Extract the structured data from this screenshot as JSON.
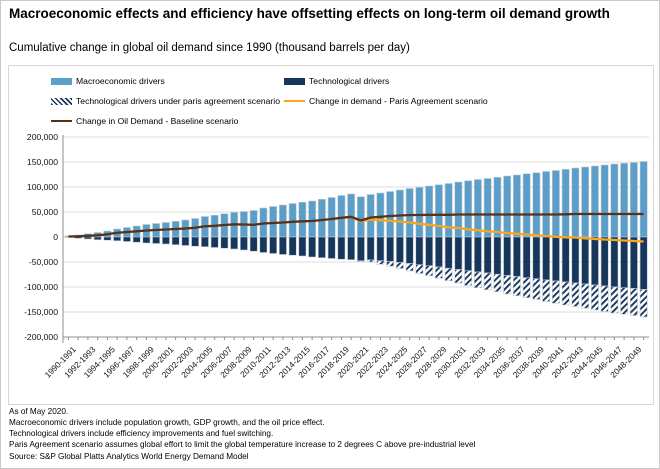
{
  "header": {
    "title": "Macroeconomic effects and efficiency have offsetting effects on long-term oil demand growth",
    "subtitle": "Cumulative change in global oil demand since 1990 (thousand barrels per day)"
  },
  "colors": {
    "macro_blue": "#5b9ec9",
    "tech_navy": "#16365c",
    "baseline_brown": "#583116",
    "paris_orange": "#faa51e",
    "gridline": "#dcdcdc",
    "axis": "#8c8c8c"
  },
  "legend": {
    "items": [
      {
        "label": "Macroeconomic drivers",
        "swatch": "bar",
        "color": "#5b9ec9"
      },
      {
        "label": "Technological drivers",
        "swatch": "bar",
        "color": "#16365c"
      },
      {
        "label": "Technological drivers under paris agreement scenario",
        "swatch": "hatch",
        "color": "#16365c"
      },
      {
        "label": "Change in demand - Paris Agreement scenario",
        "swatch": "line",
        "color": "#faa51e"
      },
      {
        "label": "Change in Oil Demand - Baseline scenario",
        "swatch": "line",
        "color": "#583116"
      }
    ]
  },
  "chart_data": {
    "type": "bar",
    "note": "stacked diverging bars with two overlay line series; unit = thousand barrels per day, cumulative change since 1990",
    "ylim": [
      -200000,
      200000
    ],
    "grid": true,
    "legend_position": "top",
    "y_ticks": [
      200000,
      150000,
      100000,
      50000,
      0,
      -50000,
      -100000,
      -150000,
      -200000
    ],
    "y_tick_labels": [
      "200,000",
      "150,000",
      "100,000",
      "50,000",
      "0",
      "-50,000",
      "-100,000",
      "-150,000",
      "-200,000"
    ],
    "categories": [
      "1990-1991",
      "1992-1993",
      "1994-1995",
      "1996-1997",
      "1998-1999",
      "2000-2001",
      "2002-2003",
      "2004-2005",
      "2006-2007",
      "2008-2009",
      "2010-2011",
      "2012-2013",
      "2014-2015",
      "2016-2017",
      "2018-2019",
      "2020-2021",
      "2022-2023",
      "2024-2025",
      "2026-2027",
      "2028-2029",
      "2030-2031",
      "2032-2033",
      "2034-2035",
      "2036-2037",
      "2038-2039",
      "2040-2041",
      "2042-2043",
      "2044-2045",
      "2046-2047",
      "2048-2049"
    ],
    "years": [
      1990,
      1991,
      1992,
      1993,
      1994,
      1995,
      1996,
      1997,
      1998,
      1999,
      2000,
      2001,
      2002,
      2003,
      2004,
      2005,
      2006,
      2007,
      2008,
      2009,
      2010,
      2011,
      2012,
      2013,
      2014,
      2015,
      2016,
      2017,
      2018,
      2019,
      2020,
      2021,
      2022,
      2023,
      2024,
      2025,
      2026,
      2027,
      2028,
      2029,
      2030,
      2031,
      2032,
      2033,
      2034,
      2035,
      2036,
      2037,
      2038,
      2039,
      2040,
      2041,
      2042,
      2043,
      2044,
      2045,
      2046,
      2047,
      2048,
      2049
    ],
    "series": [
      {
        "name": "Macroeconomic drivers",
        "render": "bar-positive",
        "values": [
          2000,
          4000,
          6500,
          9000,
          12000,
          16000,
          19000,
          22000,
          25000,
          27000,
          29000,
          31500,
          34000,
          37000,
          41000,
          43500,
          46500,
          49500,
          51000,
          53000,
          58000,
          61000,
          64000,
          67000,
          69500,
          72000,
          75500,
          79000,
          83000,
          86000,
          80500,
          85000,
          88000,
          91000,
          94000,
          97000,
          99500,
          102000,
          104500,
          107000,
          110000,
          112500,
          115000,
          117000,
          119500,
          122000,
          124000,
          126500,
          128500,
          131000,
          133000,
          135500,
          138000,
          140000,
          142000,
          144000,
          146000,
          147500,
          149000,
          151000
        ]
      },
      {
        "name": "Technological drivers",
        "render": "bar-negative",
        "values": [
          -1000,
          -2500,
          -4000,
          -5500,
          -6500,
          -7500,
          -9000,
          -10500,
          -12000,
          -13000,
          -14000,
          -15500,
          -17000,
          -18500,
          -19500,
          -21000,
          -22500,
          -24000,
          -26000,
          -28500,
          -31000,
          -33000,
          -35000,
          -36500,
          -38000,
          -40000,
          -41500,
          -43000,
          -44500,
          -45500,
          -47500,
          -46000,
          -47500,
          -49000,
          -51000,
          -53000,
          -55500,
          -57500,
          -60000,
          -62500,
          -65000,
          -67500,
          -70000,
          -72000,
          -74500,
          -77000,
          -79000,
          -81500,
          -83500,
          -86000,
          -88000,
          -90000,
          -92000,
          -94000,
          -96000,
          -98000,
          -100000,
          -101500,
          -103000,
          -105000
        ]
      },
      {
        "name": "Technological drivers under paris agreement scenario",
        "render": "bar-hatched-extension",
        "values": [
          0,
          0,
          0,
          0,
          0,
          0,
          0,
          0,
          0,
          0,
          0,
          0,
          0,
          0,
          0,
          0,
          0,
          0,
          0,
          0,
          0,
          0,
          0,
          0,
          0,
          0,
          0,
          0,
          0,
          0,
          -1500,
          -4000,
          -7000,
          -9500,
          -12000,
          -15000,
          -17500,
          -20000,
          -22500,
          -25000,
          -27000,
          -29500,
          -31500,
          -33500,
          -35000,
          -37000,
          -38500,
          -40000,
          -41500,
          -43000,
          -44500,
          -46000,
          -47000,
          -48500,
          -50000,
          -51000,
          -52000,
          -53000,
          -54000,
          -55000
        ]
      },
      {
        "name": "Change in Oil Demand - Baseline scenario",
        "render": "line",
        "derived": "macro_plus_tech"
      },
      {
        "name": "Change in demand - Paris Agreement scenario",
        "render": "line",
        "derived": "macro_plus_tech_plus_paris",
        "start_index": 28
      }
    ]
  },
  "footnotes": [
    "As of May 2020.",
    "Macroeconomic drivers include population growth, GDP growth, and the oil price effect.",
    "Technological drivers include efficiency improvements and fuel switching.",
    "Paris Agreement scenario assumes global effort to limit the global temperature increase to 2 degrees C above pre-industrial level",
    "Source: S&P Global Platts Analytics World Energy Demand Model"
  ]
}
